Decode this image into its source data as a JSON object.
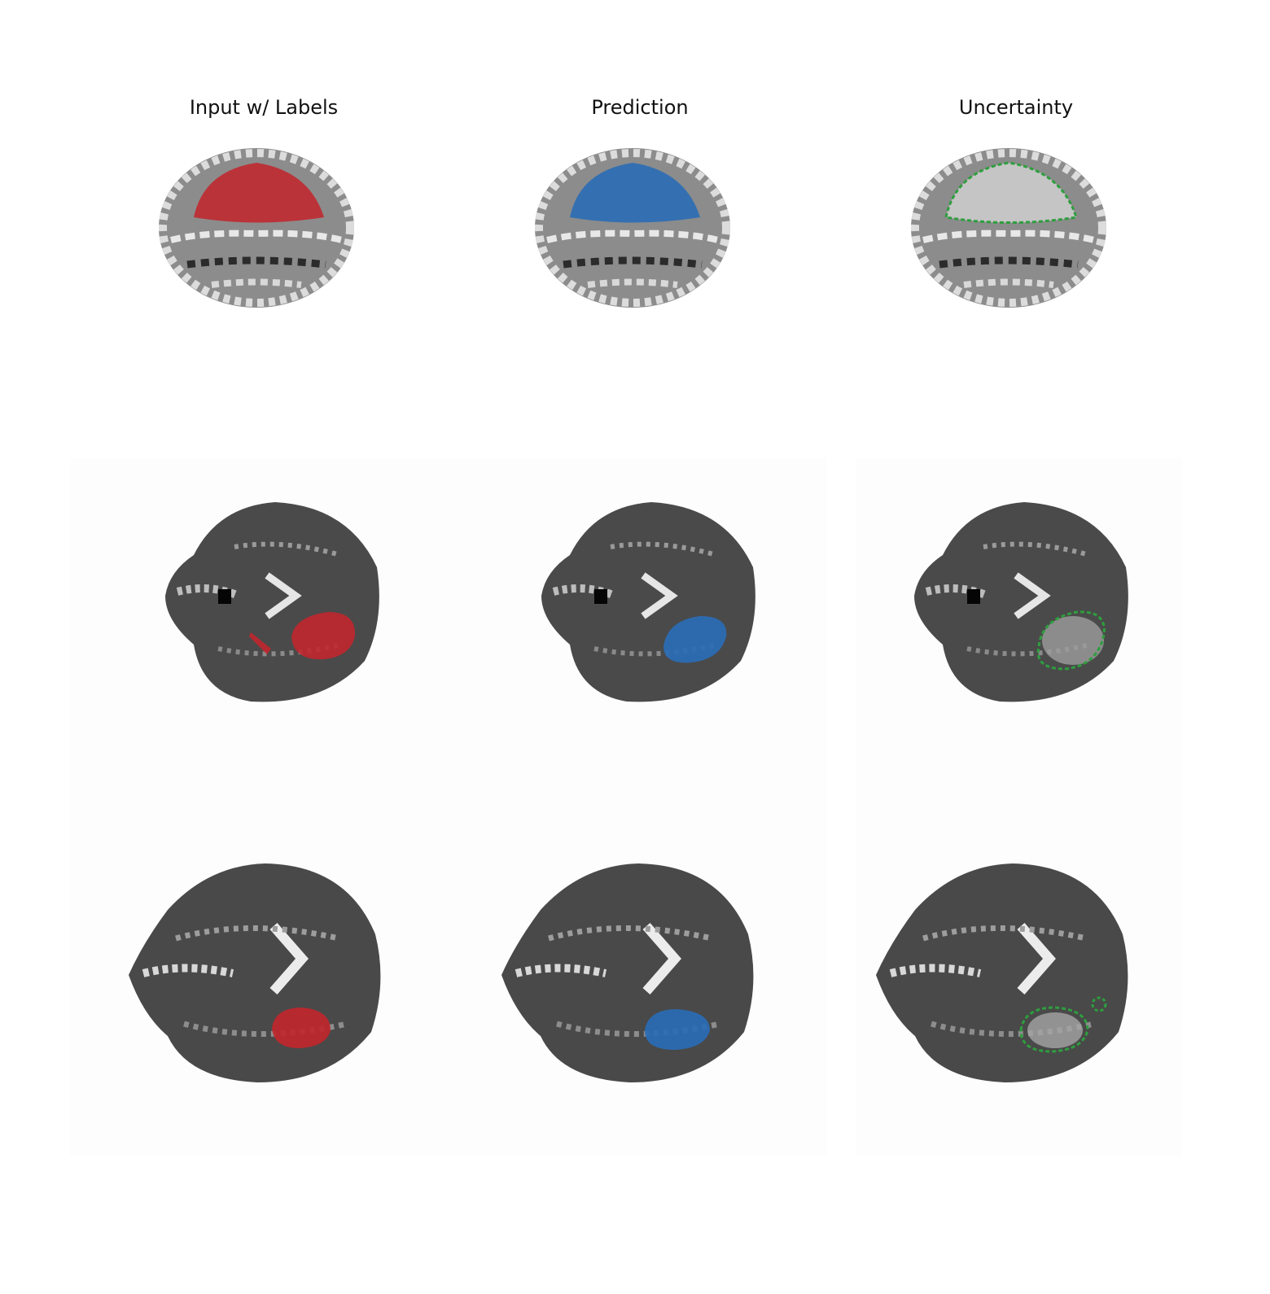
{
  "columns": [
    {
      "title": "Input w/ Labels"
    },
    {
      "title": "Prediction"
    },
    {
      "title": "Uncertainty"
    }
  ],
  "colors": {
    "label_overlay": "#c0272d",
    "prediction_overlay": "#2a6db5",
    "uncertainty_contour": "#2e9e3e"
  },
  "rows": [
    {
      "view": "sagittal-like slice",
      "mask": "superior lobe region"
    },
    {
      "view": "axial slice",
      "mask": "posterior lesion"
    },
    {
      "view": "axial slice",
      "mask": "posterior lesion"
    }
  ]
}
